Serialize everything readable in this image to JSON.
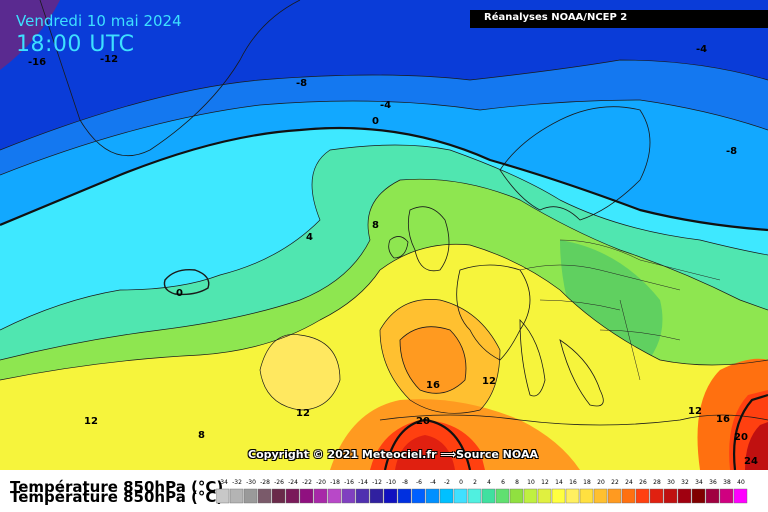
{
  "header": {
    "date": "Vendredi 10 mai 2024",
    "time": "18:00 UTC",
    "source": "Réanalyses NOAA/NCEP 2"
  },
  "footer": {
    "copyright": "Copyright © 2021 Meteociel.fr ⟹Source NOAA"
  },
  "legend": {
    "title": "Température 850hPa (°C)",
    "title_echo": "Température 850hPa (°C)",
    "ticks": [
      "-34",
      "-32",
      "-30",
      "-28",
      "-26",
      "-24",
      "-22",
      "-20",
      "-18",
      "-16",
      "-14",
      "-12",
      "-10",
      "-8",
      "-6",
      "-4",
      "-2",
      "0",
      "2",
      "4",
      "6",
      "8",
      "10",
      "12",
      "14",
      "16",
      "18",
      "20",
      "22",
      "24",
      "26",
      "28",
      "30",
      "32",
      "34",
      "36",
      "38",
      "40"
    ],
    "colors": [
      "#c8c8c8",
      "#b4b4b4",
      "#9a9a9a",
      "#7a5a6a",
      "#6a2a4a",
      "#7a1a5a",
      "#901080",
      "#a828a8",
      "#b848c8",
      "#8040c0",
      "#5030b0",
      "#3020a0",
      "#1010c0",
      "#0030e0",
      "#0060ff",
      "#0090ff",
      "#00c0ff",
      "#40e0ff",
      "#50f0e0",
      "#40e0a0",
      "#60e070",
      "#90e040",
      "#c0f040",
      "#e0f040",
      "#ffff40",
      "#fff060",
      "#ffe040",
      "#ffc030",
      "#ff9a20",
      "#ff7010",
      "#ff4010",
      "#e02010",
      "#c01010",
      "#a00010",
      "#800000",
      "#a00040",
      "#d00080",
      "#ff00ff"
    ]
  },
  "contours": {
    "labels": [
      "-16",
      "-12",
      "-8",
      "-4",
      "-4",
      "-8",
      "0",
      "0",
      "4",
      "8",
      "12",
      "12",
      "12",
      "8",
      "16",
      "20",
      "12",
      "16",
      "20",
      "24"
    ]
  }
}
